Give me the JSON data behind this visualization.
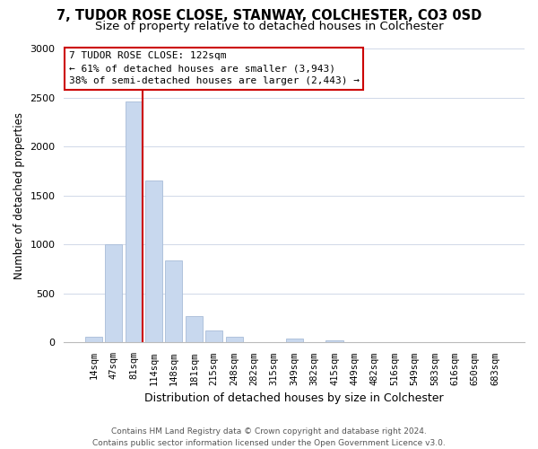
{
  "title": "7, TUDOR ROSE CLOSE, STANWAY, COLCHESTER, CO3 0SD",
  "subtitle": "Size of property relative to detached houses in Colchester",
  "xlabel": "Distribution of detached houses by size in Colchester",
  "ylabel": "Number of detached properties",
  "bar_labels": [
    "14sqm",
    "47sqm",
    "81sqm",
    "114sqm",
    "148sqm",
    "181sqm",
    "215sqm",
    "248sqm",
    "282sqm",
    "315sqm",
    "349sqm",
    "382sqm",
    "415sqm",
    "449sqm",
    "482sqm",
    "516sqm",
    "549sqm",
    "583sqm",
    "616sqm",
    "650sqm",
    "683sqm"
  ],
  "bar_values": [
    55,
    1000,
    2460,
    1650,
    840,
    270,
    120,
    55,
    0,
    0,
    40,
    0,
    20,
    0,
    0,
    0,
    0,
    0,
    0,
    0,
    0
  ],
  "bar_color": "#c8d8ee",
  "bar_edge_color": "#a8bcd8",
  "vline_color": "#cc0000",
  "ylim": [
    0,
    3000
  ],
  "yticks": [
    0,
    500,
    1000,
    1500,
    2000,
    2500,
    3000
  ],
  "annotation_line0": "7 TUDOR ROSE CLOSE: 122sqm",
  "annotation_line1": "← 61% of detached houses are smaller (3,943)",
  "annotation_line2": "38% of semi-detached houses are larger (2,443) →",
  "annotation_box_color": "#ffffff",
  "annotation_box_edge": "#cc0000",
  "footer_line1": "Contains HM Land Registry data © Crown copyright and database right 2024.",
  "footer_line2": "Contains public sector information licensed under the Open Government Licence v3.0.",
  "background_color": "#ffffff",
  "grid_color": "#d0d8e8",
  "title_fontsize": 10.5,
  "subtitle_fontsize": 9.5
}
